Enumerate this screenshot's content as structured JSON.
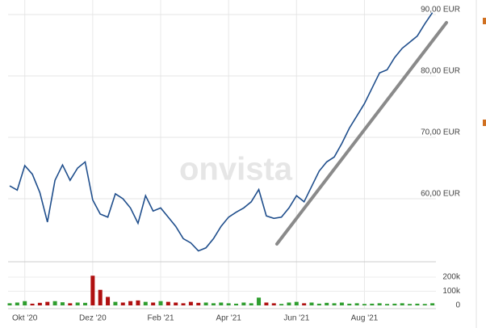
{
  "chart_data": {
    "type": "line",
    "watermark": "onvista",
    "categories": [
      null,
      null,
      "Okt '20",
      null,
      null,
      null,
      null,
      null,
      null,
      null,
      null,
      "Dez '20",
      null,
      null,
      null,
      null,
      null,
      null,
      null,
      null,
      "Feb '21",
      null,
      null,
      null,
      null,
      null,
      null,
      null,
      null,
      "Apr '21",
      null,
      null,
      null,
      null,
      null,
      null,
      null,
      null,
      "Jun '21",
      null,
      null,
      null,
      null,
      null,
      null,
      null,
      null,
      "Aug '21",
      null,
      null,
      null,
      null,
      null,
      null,
      null,
      null,
      null
    ],
    "series": [
      {
        "color": "#1f4e8c",
        "values": [
          62.1,
          61.4,
          65.4,
          64.0,
          61.0,
          56.2,
          63.0,
          65.5,
          63.0,
          65.0,
          66.0,
          59.8,
          57.5,
          57.0,
          60.8,
          60.0,
          58.5,
          56.0,
          60.5,
          58.0,
          58.5,
          57.0,
          55.5,
          53.5,
          52.8,
          51.5,
          52.0,
          53.5,
          55.5,
          57.0,
          57.8,
          58.5,
          59.5,
          61.5,
          57.2,
          56.8,
          57.0,
          58.5,
          60.5,
          59.5,
          62.0,
          64.5,
          66.0,
          66.8,
          69.0,
          71.5,
          73.5,
          75.5,
          78.0,
          80.5,
          81.0,
          83.0,
          84.5,
          85.5,
          86.5,
          88.5,
          90.3
        ]
      }
    ],
    "ylim": [
      50,
      91
    ],
    "yticks": [
      {
        "value": 60,
        "label": "60,00 EUR"
      },
      {
        "value": 70,
        "label": "70,00 EUR"
      },
      {
        "value": 80,
        "label": "80,00 EUR"
      },
      {
        "value": 90,
        "label": "90,00 EUR"
      }
    ],
    "volume": {
      "type": "bar",
      "values": [
        15000,
        20000,
        30000,
        12000,
        18000,
        25000,
        30000,
        22000,
        15000,
        20000,
        18000,
        210000,
        110000,
        60000,
        25000,
        20000,
        30000,
        35000,
        25000,
        20000,
        30000,
        25000,
        20000,
        15000,
        25000,
        18000,
        20000,
        15000,
        20000,
        15000,
        12000,
        20000,
        15000,
        55000,
        20000,
        15000,
        10000,
        20000,
        25000,
        15000,
        20000,
        12000,
        18000,
        15000,
        20000,
        12000,
        15000,
        10000,
        12000,
        15000,
        10000,
        12000,
        15000,
        10000,
        12000,
        10000,
        15000
      ],
      "colors": [
        "#2f9e2f",
        "#2f9e2f",
        "#2f9e2f",
        "#b01010",
        "#b01010",
        "#b01010",
        "#2f9e2f",
        "#2f9e2f",
        "#b01010",
        "#2f9e2f",
        "#2f9e2f",
        "#b01010",
        "#b01010",
        "#b01010",
        "#2f9e2f",
        "#b01010",
        "#b01010",
        "#b01010",
        "#2f9e2f",
        "#b01010",
        "#2f9e2f",
        "#b01010",
        "#b01010",
        "#b01010",
        "#b01010",
        "#b01010",
        "#2f9e2f",
        "#2f9e2f",
        "#2f9e2f",
        "#2f9e2f",
        "#2f9e2f",
        "#2f9e2f",
        "#2f9e2f",
        "#2f9e2f",
        "#b01010",
        "#b01010",
        "#2f9e2f",
        "#2f9e2f",
        "#2f9e2f",
        "#b01010",
        "#2f9e2f",
        "#2f9e2f",
        "#2f9e2f",
        "#2f9e2f",
        "#2f9e2f",
        "#2f9e2f",
        "#2f9e2f",
        "#2f9e2f",
        "#2f9e2f",
        "#2f9e2f",
        "#2f9e2f",
        "#2f9e2f",
        "#2f9e2f",
        "#2f9e2f",
        "#2f9e2f",
        "#2f9e2f",
        "#2f9e2f"
      ],
      "ylim": [
        0,
        300000
      ],
      "yticks": [
        0,
        {
          "value": 100000,
          "label": "100k"
        },
        {
          "value": 200000,
          "label": "200k"
        }
      ]
    }
  }
}
